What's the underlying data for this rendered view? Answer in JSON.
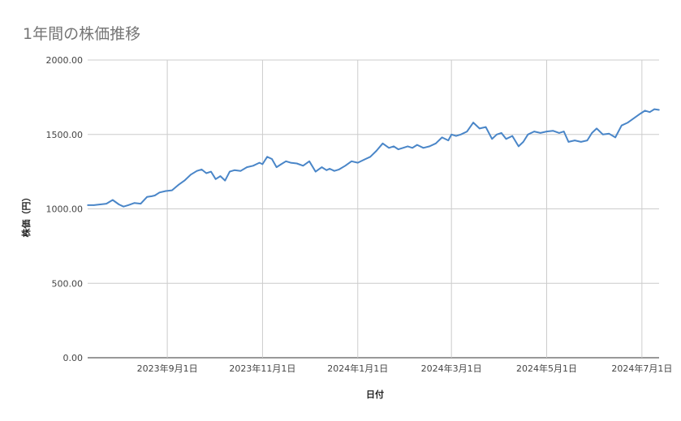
{
  "chart_data": {
    "type": "line",
    "title": "1年間の株価推移",
    "xlabel": "日付",
    "ylabel": "株価（円）",
    "ylim": [
      0,
      2000
    ],
    "y_ticks": [
      "0.00",
      "500.00",
      "1000.00",
      "1500.00",
      "2000.00"
    ],
    "x_ticks": [
      {
        "date": "2023-09-01",
        "label": "2023年9月1日"
      },
      {
        "date": "2023-11-01",
        "label": "2023年11月1日"
      },
      {
        "date": "2024-01-01",
        "label": "2024年1月1日"
      },
      {
        "date": "2024-03-01",
        "label": "2024年3月1日"
      },
      {
        "date": "2024-05-01",
        "label": "2024年5月1日"
      },
      {
        "date": "2024-07-01",
        "label": "2024年7月1日"
      }
    ],
    "x_range": [
      "2023-07-12",
      "2024-07-12"
    ],
    "grid": true,
    "line_color": "#4a86c8",
    "series": [
      {
        "x": [
          "2023-07-12",
          "2023-07-16",
          "2023-07-20",
          "2023-07-24",
          "2023-07-28",
          "2023-08-01",
          "2023-08-04",
          "2023-08-07",
          "2023-08-11",
          "2023-08-15",
          "2023-08-19",
          "2023-08-22",
          "2023-08-24",
          "2023-08-27",
          "2023-08-31",
          "2023-09-04",
          "2023-09-08",
          "2023-09-12",
          "2023-09-16",
          "2023-09-20",
          "2023-09-23",
          "2023-09-26",
          "2023-09-29",
          "2023-10-02",
          "2023-10-05",
          "2023-10-08",
          "2023-10-11",
          "2023-10-14",
          "2023-10-18",
          "2023-10-22",
          "2023-10-26",
          "2023-10-30",
          "2023-11-01",
          "2023-11-04",
          "2023-11-07",
          "2023-11-10",
          "2023-11-13",
          "2023-11-16",
          "2023-11-19",
          "2023-11-23",
          "2023-11-27",
          "2023-12-01",
          "2023-12-05",
          "2023-12-09",
          "2023-12-12",
          "2023-12-14",
          "2023-12-17",
          "2023-12-20",
          "2023-12-24",
          "2023-12-28",
          "2024-01-01",
          "2024-01-05",
          "2024-01-09",
          "2024-01-13",
          "2024-01-17",
          "2024-01-21",
          "2024-01-24",
          "2024-01-27",
          "2024-01-30",
          "2024-02-02",
          "2024-02-05",
          "2024-02-08",
          "2024-02-12",
          "2024-02-16",
          "2024-02-20",
          "2024-02-24",
          "2024-02-28",
          "2024-03-01",
          "2024-03-04",
          "2024-03-07",
          "2024-03-11",
          "2024-03-15",
          "2024-03-19",
          "2024-03-23",
          "2024-03-27",
          "2024-03-30",
          "2024-04-02",
          "2024-04-05",
          "2024-04-09",
          "2024-04-13",
          "2024-04-16",
          "2024-04-19",
          "2024-04-23",
          "2024-04-27",
          "2024-05-01",
          "2024-05-05",
          "2024-05-09",
          "2024-05-12",
          "2024-05-15",
          "2024-05-19",
          "2024-05-23",
          "2024-05-27",
          "2024-05-30",
          "2024-06-02",
          "2024-06-06",
          "2024-06-10",
          "2024-06-14",
          "2024-06-18",
          "2024-06-22",
          "2024-06-26",
          "2024-06-30",
          "2024-07-03",
          "2024-07-06",
          "2024-07-09",
          "2024-07-12"
        ],
        "values": [
          1025,
          1025,
          1030,
          1035,
          1060,
          1030,
          1015,
          1025,
          1040,
          1035,
          1080,
          1085,
          1090,
          1110,
          1120,
          1125,
          1160,
          1190,
          1230,
          1255,
          1265,
          1240,
          1250,
          1200,
          1220,
          1190,
          1250,
          1260,
          1255,
          1280,
          1290,
          1310,
          1300,
          1350,
          1335,
          1280,
          1300,
          1320,
          1310,
          1305,
          1290,
          1320,
          1250,
          1280,
          1260,
          1270,
          1255,
          1265,
          1290,
          1320,
          1310,
          1330,
          1350,
          1390,
          1440,
          1410,
          1420,
          1400,
          1410,
          1420,
          1410,
          1430,
          1410,
          1420,
          1440,
          1480,
          1460,
          1500,
          1490,
          1500,
          1520,
          1580,
          1540,
          1550,
          1470,
          1500,
          1510,
          1470,
          1490,
          1420,
          1450,
          1500,
          1520,
          1510,
          1520,
          1525,
          1510,
          1520,
          1450,
          1460,
          1450,
          1460,
          1510,
          1540,
          1500,
          1505,
          1480,
          1560,
          1580,
          1610,
          1640,
          1660,
          1650,
          1670,
          1665
        ]
      }
    ]
  }
}
